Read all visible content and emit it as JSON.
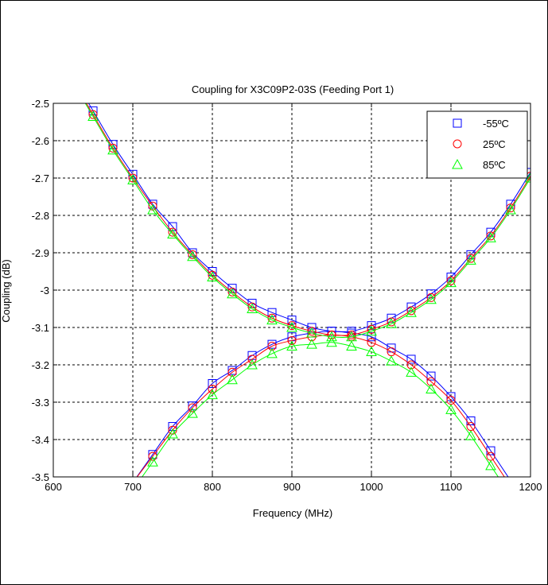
{
  "chart_data": {
    "type": "line",
    "title": "Coupling for X3C09P2-03S (Feeding Port 1)",
    "xlabel": "Frequency (MHz)",
    "ylabel": "Coupling (dB)",
    "xlim": [
      600,
      1200
    ],
    "ylim": [
      -3.5,
      -2.5
    ],
    "xticks": [
      600,
      700,
      800,
      900,
      1000,
      1100,
      1200
    ],
    "yticks": [
      -3.5,
      -3.4,
      -3.3,
      -3.2,
      -3.1,
      -3,
      -2.9,
      -2.8,
      -2.7,
      -2.6,
      -2.5
    ],
    "grid": true,
    "legend_position": "top-right",
    "x": [
      650,
      675,
      700,
      725,
      750,
      775,
      800,
      825,
      850,
      875,
      900,
      925,
      950,
      975,
      1000,
      1025,
      1050,
      1075,
      1100,
      1125,
      1150,
      1175,
      1200
    ],
    "series": [
      {
        "name": "-55ºC",
        "marker": "square",
        "color": "#0000ff",
        "upper": [
          -2.52,
          -2.61,
          -2.69,
          -2.77,
          -2.83,
          -2.9,
          -2.95,
          -2.995,
          -3.035,
          -3.06,
          -3.08,
          -3.1,
          -3.11,
          -3.11,
          -3.095,
          -3.075,
          -3.045,
          -3.01,
          -2.965,
          -2.905,
          -2.845,
          -2.77,
          -2.685
        ],
        "lower": [
          null,
          null,
          null,
          -3.44,
          -3.365,
          -3.31,
          -3.25,
          -3.215,
          -3.175,
          -3.145,
          -3.125,
          -3.115,
          -3.11,
          -3.115,
          -3.125,
          -3.155,
          -3.185,
          -3.23,
          -3.285,
          -3.35,
          -3.43,
          null,
          null
        ]
      },
      {
        "name": "25ºC",
        "marker": "circle",
        "color": "#ff0000",
        "upper": [
          -2.53,
          -2.62,
          -2.7,
          -2.775,
          -2.845,
          -2.905,
          -2.96,
          -3.005,
          -3.045,
          -3.075,
          -3.095,
          -3.11,
          -3.12,
          -3.12,
          -3.105,
          -3.085,
          -3.055,
          -3.02,
          -2.975,
          -2.915,
          -2.855,
          -2.78,
          -2.695
        ],
        "lower": [
          null,
          null,
          null,
          -3.445,
          -3.375,
          -3.315,
          -3.265,
          -3.22,
          -3.185,
          -3.15,
          -3.135,
          -3.125,
          -3.12,
          -3.125,
          -3.14,
          -3.165,
          -3.2,
          -3.245,
          -3.295,
          -3.365,
          -3.445,
          null,
          null
        ]
      },
      {
        "name": "85ºC",
        "marker": "triangle",
        "color": "#00ff00",
        "upper": [
          -2.535,
          -2.625,
          -2.705,
          -2.785,
          -2.85,
          -2.91,
          -2.965,
          -3.01,
          -3.05,
          -3.08,
          -3.1,
          -3.115,
          -3.125,
          -3.125,
          -3.11,
          -3.09,
          -3.06,
          -3.025,
          -2.98,
          -2.92,
          -2.86,
          -2.785,
          -2.7
        ],
        "lower": [
          null,
          null,
          null,
          -3.46,
          -3.385,
          -3.33,
          -3.28,
          -3.24,
          -3.2,
          -3.17,
          -3.15,
          -3.145,
          -3.14,
          -3.15,
          -3.165,
          -3.19,
          -3.22,
          -3.265,
          -3.32,
          -3.39,
          -3.47,
          null,
          null
        ]
      }
    ]
  }
}
